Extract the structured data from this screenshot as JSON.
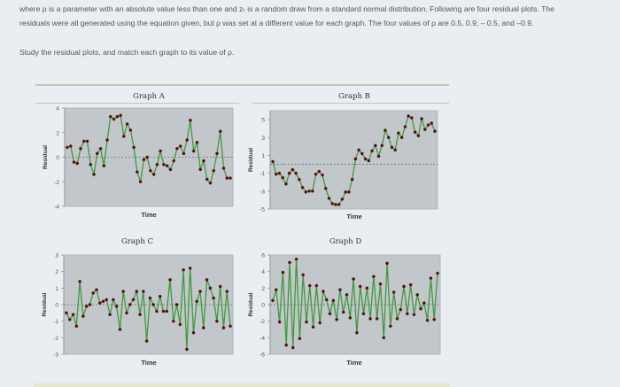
{
  "text": {
    "intro": "where ρ is a parameter with an absolute value less than one and zₜ is a random draw from a standard normal distribution. Following are four residual plots. The residuals were all generated using the equation given, but ρ was set at a different value for each graph. The four values of ρ are 0.5, 0.9, – 0.5, and –0.9.",
    "instruction": "Study the residual plots, and match each graph to its value of ρ."
  },
  "colors": {
    "plot_bg": "#c2c7cc",
    "line": "#3f9a3a",
    "marker": "#3a1414",
    "zero_line": "#6a7078",
    "axis_text": "#555555"
  },
  "chart_data": [
    {
      "id": "A",
      "type": "line",
      "title": "Graph A",
      "xlabel": "Time",
      "ylabel": "Residual",
      "ylim": [
        -4,
        4
      ],
      "yticks": [
        4,
        2,
        0,
        -2,
        -4
      ],
      "zero_line": true,
      "values": [
        0.8,
        0.9,
        -0.4,
        -0.5,
        0.7,
        1.3,
        1.3,
        -0.6,
        -1.4,
        0.3,
        0.7,
        -0.7,
        1.4,
        3.3,
        3.1,
        3.3,
        3.4,
        1.7,
        2.7,
        2.2,
        0.8,
        -1.2,
        -2.0,
        -0.2,
        0.0,
        -1.1,
        -1.4,
        -0.6,
        0.5,
        -0.6,
        -0.7,
        -1.0,
        -0.3,
        0.7,
        0.9,
        0.3,
        1.4,
        3.0,
        0.5,
        1.2,
        -1.0,
        -0.3,
        -1.8,
        -2.1,
        -1.1,
        0.3,
        2.1,
        -0.9,
        -1.7,
        -1.7
      ]
    },
    {
      "id": "B",
      "type": "line",
      "title": "Graph B",
      "xlabel": "Time",
      "ylabel": "Residual",
      "ylim": [
        -5,
        6
      ],
      "yticks": [
        5,
        3,
        1,
        -1,
        -3,
        -5
      ],
      "zero_line": true,
      "values": [
        0.3,
        -1.1,
        -1.0,
        -1.5,
        -2.2,
        -1.0,
        -0.6,
        -1.0,
        -1.7,
        -2.6,
        -3.1,
        -3.0,
        -3.0,
        -1.1,
        -0.8,
        -1.2,
        -2.7,
        -3.8,
        -4.4,
        -4.5,
        -4.5,
        -3.9,
        -3.1,
        -3.1,
        -1.7,
        0.6,
        1.6,
        1.2,
        0.6,
        0.4,
        1.5,
        2.1,
        0.9,
        2.1,
        3.8,
        3.0,
        1.9,
        1.6,
        3.5,
        3.0,
        4.2,
        5.4,
        5.2,
        3.6,
        3.2,
        5.1,
        3.9,
        4.4,
        4.6,
        3.7
      ]
    },
    {
      "id": "C",
      "type": "line",
      "title": "Graph C",
      "xlabel": "Time",
      "ylabel": "Residual",
      "ylim": [
        -3,
        3
      ],
      "yticks": [
        3,
        2,
        1,
        0,
        -1,
        -2,
        -3
      ],
      "zero_line": true,
      "values": [
        -0.5,
        -0.9,
        -0.6,
        -1.3,
        1.4,
        -0.7,
        -0.1,
        0.0,
        0.7,
        0.9,
        0.1,
        0.2,
        0.3,
        -0.6,
        0.3,
        -0.1,
        -1.5,
        0.8,
        -0.5,
        0.0,
        0.3,
        0.8,
        -0.6,
        0.8,
        -2.2,
        0.4,
        0.0,
        -0.4,
        0.5,
        -0.4,
        -0.4,
        1.5,
        -1.0,
        0.0,
        -1.2,
        2.1,
        -2.7,
        2.2,
        -1.7,
        0.2,
        0.8,
        -1.4,
        1.5,
        1.0,
        0.4,
        -1.0,
        1.1,
        -1.4,
        0.8,
        -1.3
      ]
    },
    {
      "id": "D",
      "type": "line",
      "title": "Graph D",
      "xlabel": "Time",
      "ylabel": "Residual",
      "ylim": [
        -6,
        6
      ],
      "yticks": [
        6,
        4,
        2,
        0,
        -2,
        -4,
        -6
      ],
      "zero_line": true,
      "values": [
        0.5,
        1.8,
        -2.1,
        3.9,
        -4.9,
        5.1,
        -5.2,
        5.5,
        -4.1,
        3.6,
        -2.1,
        2.3,
        -2.7,
        2.3,
        -2.2,
        1.6,
        0.6,
        -1.1,
        0.5,
        -1.8,
        1.8,
        -0.9,
        1.2,
        -1.6,
        3.1,
        -3.4,
        2.2,
        -1.1,
        2.0,
        -1.7,
        3.4,
        -1.7,
        2.5,
        -4.0,
        5.0,
        -2.6,
        1.5,
        -1.7,
        -0.6,
        2.2,
        -1.1,
        2.4,
        -1.2,
        1.2,
        -0.5,
        0.2,
        -1.9,
        3.2,
        -1.8,
        3.8
      ]
    }
  ]
}
